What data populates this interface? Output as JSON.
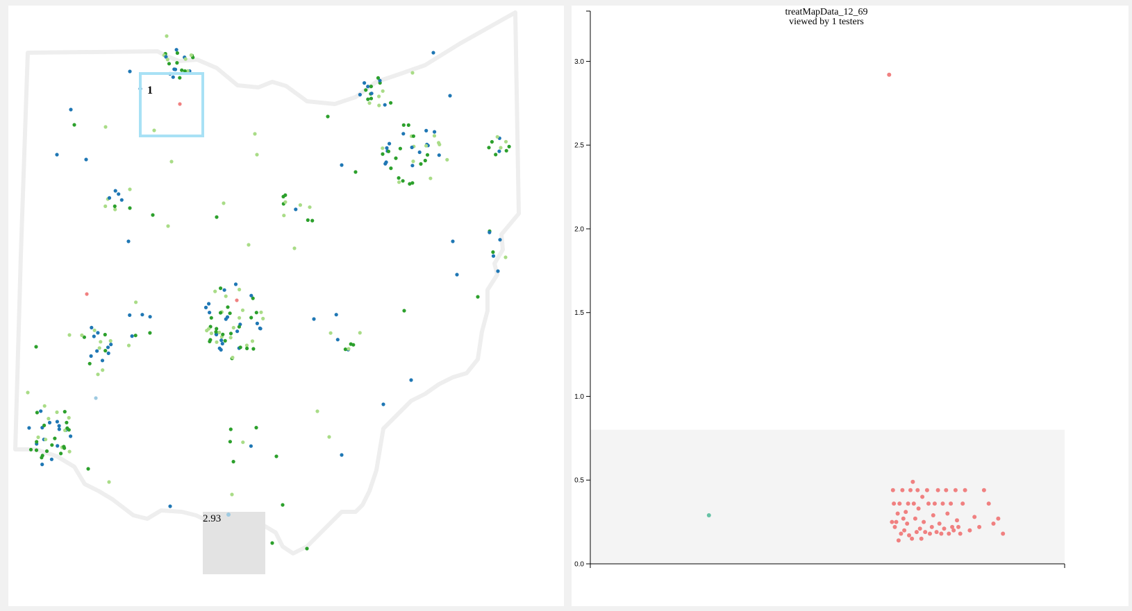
{
  "colors": {
    "dark_green": "#2ca02c",
    "light_green": "#a9dc87",
    "blue": "#1f77b4",
    "light_blue": "#9ecae1",
    "salmon": "#f08080",
    "teal": "#66c2a5",
    "selection_box": "#a8e1f5",
    "gray_box": "#e3e3e3",
    "chart_band": "#f4f4f4",
    "state_outline": "#eeeeee"
  },
  "map": {
    "selection_label": "1",
    "gray_box_label": "2.93"
  },
  "chart_data": {
    "type": "scatter",
    "title": "treatMapData_12_69",
    "subtitle": "viewed by 1 testers",
    "xlabel": "",
    "ylabel": "",
    "ylim": [
      0,
      3.3
    ],
    "yticks": [
      "0.0",
      "0.5",
      "1.0",
      "1.5",
      "2.0",
      "2.5",
      "3.0"
    ],
    "grid": false,
    "highlight_band": [
      0,
      0.8
    ],
    "x": [
      0.25,
      0.63,
      0.636,
      0.638,
      0.64,
      0.642,
      0.645,
      0.648,
      0.65,
      0.652,
      0.655,
      0.658,
      0.66,
      0.662,
      0.665,
      0.668,
      0.67,
      0.672,
      0.675,
      0.678,
      0.68,
      0.682,
      0.685,
      0.688,
      0.69,
      0.692,
      0.695,
      0.698,
      0.7,
      0.703,
      0.706,
      0.71,
      0.713,
      0.716,
      0.72,
      0.723,
      0.726,
      0.73,
      0.733,
      0.736,
      0.74,
      0.743,
      0.746,
      0.75,
      0.753,
      0.756,
      0.76,
      0.763,
      0.766,
      0.77,
      0.773,
      0.776,
      0.78,
      0.785,
      0.79,
      0.8,
      0.81,
      0.82,
      0.83,
      0.84,
      0.85,
      0.86,
      0.87
    ],
    "values": [
      0.29,
      2.92,
      0.25,
      0.44,
      0.36,
      0.22,
      0.25,
      0.3,
      0.14,
      0.36,
      0.18,
      0.44,
      0.27,
      0.2,
      0.31,
      0.24,
      0.36,
      0.17,
      0.44,
      0.15,
      0.49,
      0.36,
      0.27,
      0.19,
      0.44,
      0.33,
      0.21,
      0.15,
      0.4,
      0.25,
      0.19,
      0.44,
      0.36,
      0.18,
      0.22,
      0.29,
      0.36,
      0.19,
      0.44,
      0.24,
      0.18,
      0.36,
      0.21,
      0.44,
      0.3,
      0.18,
      0.36,
      0.22,
      0.2,
      0.44,
      0.26,
      0.22,
      0.18,
      0.36,
      0.44,
      0.2,
      0.28,
      0.22,
      0.44,
      0.36,
      0.24,
      0.27,
      0.18
    ]
  }
}
